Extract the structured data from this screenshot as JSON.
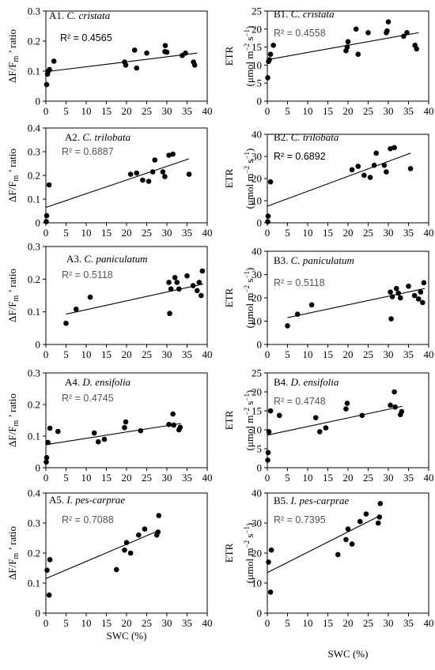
{
  "figure": {
    "x_axis_label": "SWC (%)"
  },
  "chart_data": [
    {
      "id": "A1",
      "type": "scatter",
      "title": "A1. ",
      "species": "C. cristata",
      "r2": "R² = 0.4565",
      "ylabel": "ΔF/F<sub>m</sub>’ ratio",
      "xlim": [
        0,
        40
      ],
      "ylim": [
        0,
        0.3
      ],
      "xticks": [
        0,
        5,
        10,
        15,
        20,
        25,
        30,
        35,
        40
      ],
      "yticks": [
        "0",
        "0.1",
        "0.2",
        "0.3"
      ],
      "yticks_v": [
        0,
        0.1,
        0.2,
        0.3
      ],
      "trend": [
        [
          0,
          0.098
        ],
        [
          37.5,
          0.16
        ]
      ],
      "x": [
        0.2,
        0.4,
        0.6,
        0.9,
        2,
        19.5,
        19.8,
        22,
        22.5,
        25,
        29.5,
        29.6,
        30,
        33.8,
        34.6,
        36.6,
        36.9
      ],
      "y": [
        0.055,
        0.09,
        0.1,
        0.105,
        0.133,
        0.13,
        0.12,
        0.17,
        0.11,
        0.16,
        0.165,
        0.185,
        0.163,
        0.152,
        0.16,
        0.13,
        0.12
      ]
    },
    {
      "id": "B1",
      "type": "scatter",
      "title": "B1. ",
      "species": "C. cristata",
      "r2": "R² = 0.4558",
      "ylabel": "ETR (μmol m⁻² s⁻¹)",
      "xlim": [
        0,
        40
      ],
      "ylim": [
        0,
        25
      ],
      "xticks": [
        0,
        5,
        10,
        15,
        20,
        25,
        30,
        35,
        40
      ],
      "yticks": [
        "0",
        "5",
        "10",
        "15",
        "20",
        "25"
      ],
      "yticks_v": [
        0,
        5,
        10,
        15,
        20,
        25
      ],
      "trend": [
        [
          0,
          11.5
        ],
        [
          37.5,
          19
        ]
      ],
      "x": [
        0.1,
        0.3,
        0.5,
        0.8,
        1.5,
        19.5,
        19.8,
        20,
        22,
        22.5,
        25,
        29.5,
        29.7,
        30,
        33.8,
        34.6,
        36.6,
        37
      ],
      "y": [
        6.5,
        11,
        11.5,
        13,
        15.5,
        14,
        15,
        16.5,
        20,
        13,
        19,
        19,
        19.5,
        22,
        18,
        19,
        15.5,
        14.5
      ]
    },
    {
      "id": "A2",
      "type": "scatter",
      "title": "A2. ",
      "species": "C. trilobata",
      "r2": "R² = 0.6887",
      "ylabel": "ΔF/F<sub>m</sub>’ ratio",
      "xlim": [
        0,
        40
      ],
      "ylim": [
        0,
        0.4
      ],
      "xticks": [
        0,
        5,
        10,
        15,
        20,
        25,
        30,
        35,
        40
      ],
      "yticks": [
        "0",
        "0.1",
        "0.2",
        "0.3",
        "0.4"
      ],
      "yticks_v": [
        0,
        0.1,
        0.2,
        0.3,
        0.4
      ],
      "trend": [
        [
          0,
          0.065
        ],
        [
          35.5,
          0.27
        ]
      ],
      "x": [
        0.1,
        0.2,
        0.8,
        21,
        22.5,
        24,
        25.5,
        26.5,
        27,
        29,
        29.5,
        30.5,
        31.5,
        35.5
      ],
      "y": [
        0.005,
        0.03,
        0.16,
        0.205,
        0.21,
        0.18,
        0.175,
        0.215,
        0.265,
        0.215,
        0.195,
        0.285,
        0.29,
        0.205
      ]
    },
    {
      "id": "B2",
      "type": "scatter",
      "title": "B2. ",
      "species": "C. trilobata",
      "r2": "R² = 0.6892",
      "ylabel": "ETR (μmol m⁻² s⁻¹)",
      "xlim": [
        0,
        40
      ],
      "ylim": [
        0,
        40
      ],
      "xticks": [
        0,
        5,
        10,
        15,
        20,
        25,
        30,
        35,
        40
      ],
      "yticks": [
        "0",
        "10",
        "20",
        "30",
        "40"
      ],
      "yticks_v": [
        0,
        10,
        20,
        30,
        40
      ],
      "trend": [
        [
          0,
          7.5
        ],
        [
          35.5,
          31.5
        ]
      ],
      "x": [
        0.1,
        0.2,
        0.8,
        21,
        22.5,
        24,
        25.5,
        26.5,
        27,
        29,
        29.5,
        30.5,
        31.5,
        35.5
      ],
      "y": [
        0.5,
        3,
        18.5,
        24,
        25.5,
        21.5,
        20.5,
        26,
        31.5,
        26,
        23,
        33.5,
        34,
        24.5
      ]
    },
    {
      "id": "A3",
      "type": "scatter",
      "title": "A3. ",
      "species": "C. paniculatum",
      "r2": "R² = 0.5118",
      "ylabel": "ΔF/F<sub>m</sub>’ ratio",
      "xlim": [
        0,
        40
      ],
      "ylim": [
        0,
        0.3
      ],
      "xticks": [
        0,
        5,
        10,
        15,
        20,
        25,
        30,
        35,
        40
      ],
      "yticks": [
        "0",
        "0.1",
        "0.2",
        "0.3"
      ],
      "yticks_v": [
        0,
        0.1,
        0.2,
        0.3
      ],
      "trend": [
        [
          5,
          0.093
        ],
        [
          39,
          0.185
        ]
      ],
      "x": [
        5,
        7.5,
        11,
        30.5,
        30.7,
        31,
        32,
        32.5,
        33,
        35,
        36.5,
        37.5,
        38,
        38.5,
        38.8
      ],
      "y": [
        0.065,
        0.108,
        0.145,
        0.19,
        0.095,
        0.17,
        0.205,
        0.19,
        0.17,
        0.21,
        0.18,
        0.165,
        0.19,
        0.15,
        0.225
      ]
    },
    {
      "id": "B3",
      "type": "scatter",
      "title": "B3. ",
      "species": "C. paniculatum",
      "r2": "R² = 0.5118",
      "ylabel": "ETR (μmol m⁻² s⁻¹)",
      "xlim": [
        0,
        40
      ],
      "ylim": [
        0,
        40
      ],
      "xticks": [
        0,
        5,
        10,
        15,
        20,
        25,
        30,
        35,
        40
      ],
      "yticks": [
        "0",
        "10",
        "20",
        "30",
        "40"
      ],
      "yticks_v": [
        0,
        10,
        20,
        30,
        40
      ],
      "trend": [
        [
          5,
          11.5
        ],
        [
          39,
          24
        ]
      ],
      "x": [
        5,
        7.5,
        11,
        30.5,
        30.7,
        31,
        32,
        32.5,
        33,
        35,
        36.5,
        37.5,
        38,
        38.5,
        38.8
      ],
      "y": [
        8,
        13,
        17,
        22.5,
        11,
        20.5,
        24,
        22,
        20,
        25,
        21,
        19.5,
        22.5,
        18,
        26.5
      ]
    },
    {
      "id": "A4",
      "type": "scatter",
      "title": "A4. ",
      "species": "D. ensifolia",
      "r2": "R² = 0.4745",
      "ylabel": "ΔF/F<sub>m</sub>’ ratio",
      "xlim": [
        0,
        40
      ],
      "ylim": [
        0,
        0.3
      ],
      "xticks": [
        0,
        5,
        10,
        15,
        20,
        25,
        30,
        35,
        40
      ],
      "yticks": [
        "0",
        "0.1",
        "0.2",
        "0.3"
      ],
      "yticks_v": [
        0,
        0.1,
        0.2,
        0.3
      ],
      "trend": [
        [
          0,
          0.073
        ],
        [
          33.5,
          0.14
        ]
      ],
      "x": [
        0.1,
        0.2,
        0.5,
        1,
        3,
        12,
        13,
        14.5,
        19.5,
        19.8,
        23.5,
        30.5,
        31.5,
        31.7,
        33,
        33.3
      ],
      "y": [
        0.018,
        0.032,
        0.08,
        0.125,
        0.115,
        0.11,
        0.082,
        0.09,
        0.127,
        0.145,
        0.117,
        0.137,
        0.17,
        0.135,
        0.12,
        0.128
      ]
    },
    {
      "id": "B4",
      "type": "scatter",
      "title": "B4. ",
      "species": "D. ensifolia",
      "r2": "R² = 0.4748",
      "ylabel": "ETR (μmol m⁻² s⁻¹)",
      "xlim": [
        0,
        40
      ],
      "ylim": [
        0,
        25
      ],
      "xticks": [
        0,
        5,
        10,
        15,
        20,
        25,
        30,
        35,
        40
      ],
      "yticks": [
        "0",
        "5",
        "10",
        "15",
        "20",
        "25"
      ],
      "yticks_v": [
        0,
        5,
        10,
        15,
        20,
        25
      ],
      "trend": [
        [
          0,
          8.6
        ],
        [
          33.5,
          16.2
        ]
      ],
      "x": [
        0.1,
        0.2,
        0.4,
        0.8,
        3,
        12,
        13,
        14.5,
        19.5,
        19.8,
        23.5,
        30.5,
        31.5,
        31.7,
        33,
        33.3
      ],
      "y": [
        2,
        4,
        9.5,
        15,
        13.8,
        13.2,
        9.5,
        10.5,
        15.5,
        17,
        13.8,
        16.5,
        20,
        16,
        14,
        14.8
      ]
    },
    {
      "id": "A5",
      "type": "scatter",
      "title": "A5. ",
      "species": "I. pes-carprae",
      "r2": "R² = 0.7088",
      "ylabel": "ΔF/F<sub>m</sub>’ ratio",
      "xlim": [
        0,
        40
      ],
      "ylim": [
        0,
        0.4
      ],
      "xticks": [
        0,
        5,
        10,
        15,
        20,
        25,
        30,
        35,
        40
      ],
      "yticks": [
        "0",
        "0.1",
        "0.2",
        "0.3",
        "0.4"
      ],
      "yticks_v": [
        0,
        0.1,
        0.2,
        0.3,
        0.4
      ],
      "trend": [
        [
          0,
          0.115
        ],
        [
          28,
          0.275
        ]
      ],
      "x": [
        0.3,
        0.8,
        1,
        17.5,
        19.5,
        20,
        21,
        23,
        24.5,
        27.5,
        27.8,
        28
      ],
      "y": [
        0.143,
        0.06,
        0.178,
        0.145,
        0.21,
        0.235,
        0.2,
        0.26,
        0.28,
        0.26,
        0.27,
        0.325
      ]
    },
    {
      "id": "B5",
      "type": "scatter",
      "title": "B5. ",
      "species": "I. pes-carprae",
      "r2": "R² = 0.7395",
      "ylabel": "ETR (μmol m⁻² s⁻¹)",
      "xlim": [
        0,
        40
      ],
      "ylim": [
        0,
        40
      ],
      "xticks": [
        0,
        5,
        10,
        15,
        20,
        25,
        30,
        35,
        40
      ],
      "yticks": [
        "0",
        "10",
        "20",
        "30",
        "40"
      ],
      "yticks_v": [
        0,
        10,
        20,
        30,
        40
      ],
      "trend": [
        [
          0,
          13.5
        ],
        [
          28,
          32.5
        ]
      ],
      "x": [
        0.3,
        0.8,
        1,
        17.5,
        19.5,
        20,
        21,
        23,
        24.5,
        27.5,
        27.8,
        28
      ],
      "y": [
        17,
        7,
        21,
        19.5,
        24.5,
        28,
        23,
        30.5,
        33,
        30,
        32,
        36.5
      ]
    }
  ]
}
